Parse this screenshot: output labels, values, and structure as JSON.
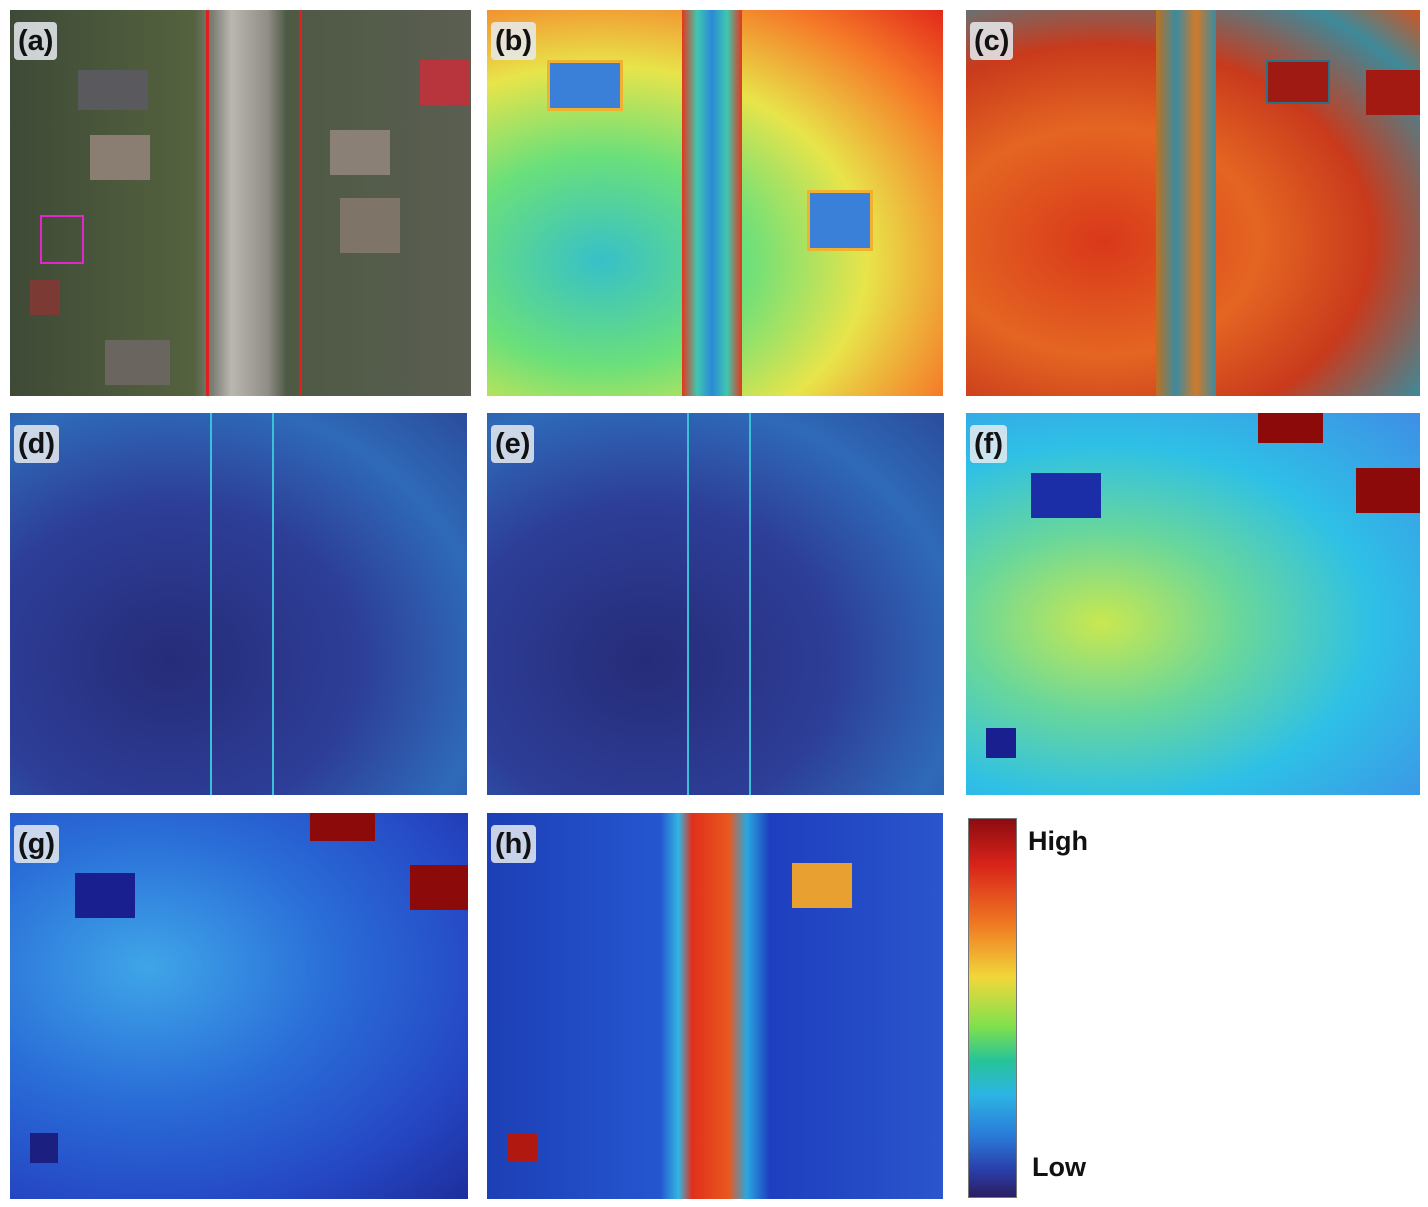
{
  "panels": [
    {
      "label": "(a)"
    },
    {
      "label": "(b)"
    },
    {
      "label": "(c)"
    },
    {
      "label": "(d)"
    },
    {
      "label": "(e)"
    },
    {
      "label": "(f)"
    },
    {
      "label": "(g)"
    },
    {
      "label": "(h)"
    }
  ],
  "colorbar": {
    "high": "High",
    "low": "Low"
  }
}
